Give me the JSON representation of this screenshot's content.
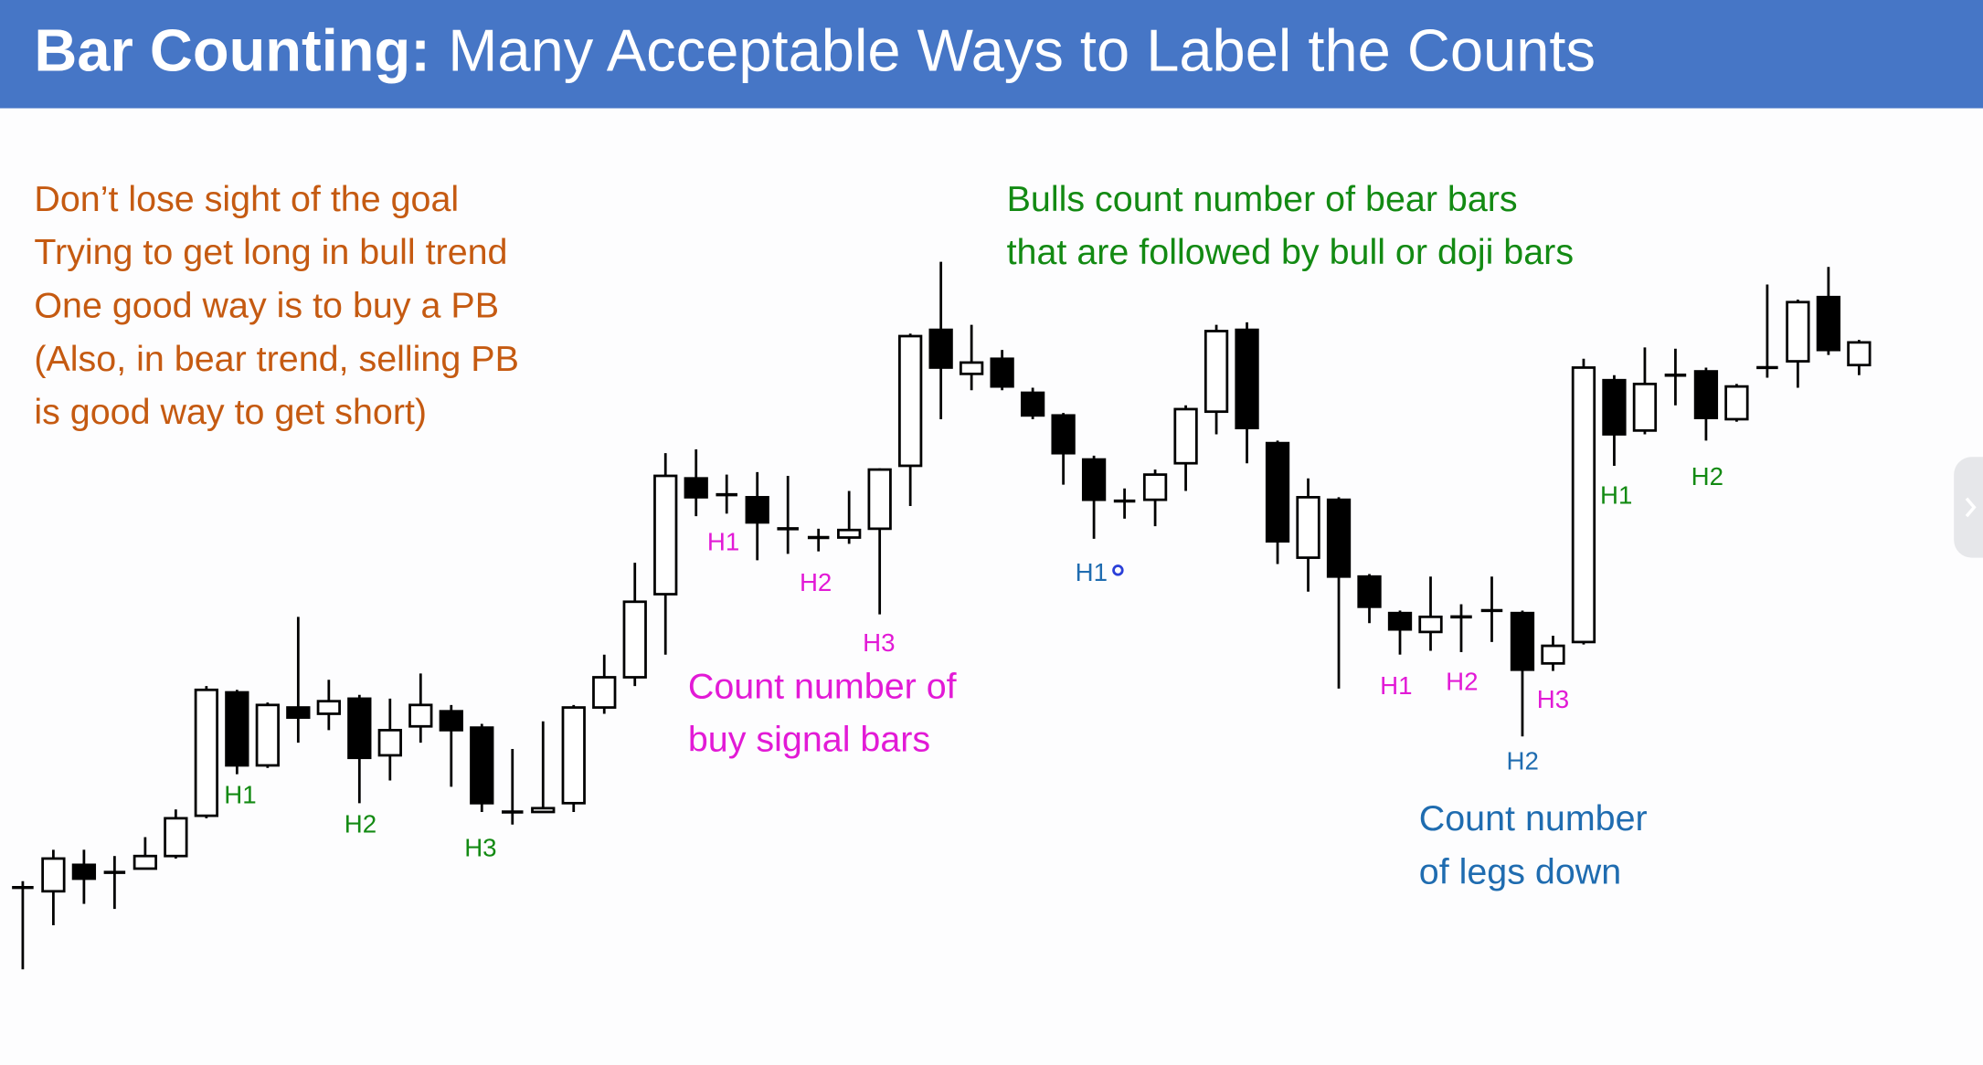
{
  "header": {
    "title_bold": "Bar Counting:",
    "title": "Many Acceptable Ways to Label the Counts"
  },
  "notes": {
    "goal": {
      "color": "#c55a11",
      "lines": [
        "Don’t lose sight of the goal",
        "Trying to get long in bull trend",
        "One good way is to buy a PB",
        "(Also, in bear trend, selling PB",
        "is good way to get short)"
      ]
    },
    "bulls": {
      "color": "#138a13",
      "lines": [
        "Bulls count number of bear bars",
        "that are followed by bull or doji bars"
      ]
    },
    "buy_signal": {
      "color": "#e21ad6",
      "lines": [
        "Count number of",
        "buy signal bars"
      ]
    },
    "legs": {
      "color": "#1f6cb0",
      "lines": [
        "Count number",
        "of legs down"
      ]
    }
  },
  "chart_data": {
    "type": "candlestick",
    "ylim": [
      0,
      120
    ],
    "up_color": "#ffffff",
    "down_color": "#000000",
    "open": [
      19,
      18.4,
      22.6,
      21.4,
      22,
      24,
      30.4,
      50,
      38.4,
      47.6,
      46.6,
      49,
      40,
      44.6,
      47,
      44.4,
      31,
      31,
      32.4,
      47.6,
      52.4,
      65.6,
      84,
      81.4,
      81,
      76,
      74.6,
      74.6,
      76,
      86,
      107.6,
      100.6,
      103,
      97.6,
      94,
      87,
      80.4,
      80.6,
      86.4,
      94.6,
      107.6,
      89.6,
      71.4,
      80.6,
      68.4,
      62.6,
      59.6,
      62,
      63,
      62.6,
      54.6,
      58,
      99.6,
      91.6,
      100.4,
      101,
      93.4,
      101.6,
      102.6,
      112.8,
      102
    ],
    "high": [
      20,
      25,
      25,
      24,
      27,
      31.4,
      51,
      50.4,
      48.4,
      62,
      52,
      49.6,
      49,
      53,
      48,
      45,
      41,
      45.4,
      48,
      56,
      70.6,
      88,
      88.6,
      84.6,
      85,
      84.4,
      76,
      82,
      85.6,
      107,
      118.4,
      108.4,
      104.4,
      98.4,
      94.4,
      87.6,
      82.4,
      85.4,
      95.6,
      108.4,
      108.8,
      90,
      84,
      81,
      68.8,
      63,
      68.4,
      64,
      68.4,
      63,
      59,
      103,
      100.4,
      104.8,
      104.6,
      101.6,
      99,
      114.8,
      112.4,
      117.6,
      106
    ],
    "low": [
      6,
      13,
      16.4,
      15.6,
      22,
      23.6,
      30,
      37,
      38,
      42,
      44,
      32.4,
      36,
      42,
      35,
      31,
      29,
      31,
      31,
      46.6,
      51,
      56,
      78,
      78.4,
      71,
      72,
      72.4,
      73.6,
      62.4,
      79.6,
      93.4,
      98,
      98,
      93.4,
      83,
      74.4,
      77.6,
      76.4,
      82,
      91,
      86.4,
      70.4,
      66,
      50.6,
      61,
      56,
      56.6,
      56.4,
      58,
      43,
      53.4,
      57.6,
      86,
      91,
      95.6,
      90,
      93,
      100,
      98.4,
      103.6,
      100.4
    ],
    "close": [
      19,
      23.6,
      20.4,
      21.4,
      24,
      30,
      50.4,
      38.4,
      48,
      46,
      48.6,
      39.6,
      44,
      48,
      44,
      32.4,
      31,
      31.6,
      47.6,
      52.4,
      64.4,
      84.4,
      81,
      81.4,
      77,
      76,
      74.6,
      75.8,
      85.4,
      106.6,
      101.6,
      102.4,
      98.6,
      94,
      88,
      80.6,
      80.4,
      84.6,
      95,
      107.4,
      92,
      74,
      81,
      68.4,
      63.6,
      60,
      62,
      62,
      63,
      53.6,
      57.4,
      101.6,
      91,
      99,
      100.4,
      93.6,
      98.6,
      101.6,
      112,
      104.4,
      105.6
    ],
    "annotations": [
      {
        "text": "H1",
        "color": "#138a13"
      },
      {
        "text": "H2",
        "color": "#138a13"
      },
      {
        "text": "H3",
        "color": "#138a13"
      },
      {
        "text": "H1",
        "color": "#e21ad6"
      },
      {
        "text": "H2",
        "color": "#e21ad6"
      },
      {
        "text": "H3",
        "color": "#e21ad6"
      },
      {
        "text": "H1",
        "color": "#1f6cb0"
      },
      {
        "text": "H1",
        "color": "#e21ad6"
      },
      {
        "text": "H2",
        "color": "#e21ad6"
      },
      {
        "text": "H3",
        "color": "#e21ad6"
      },
      {
        "text": "H2",
        "color": "#1f6cb0"
      },
      {
        "text": "H1",
        "color": "#138a13"
      },
      {
        "text": "H2",
        "color": "#138a13"
      }
    ]
  }
}
